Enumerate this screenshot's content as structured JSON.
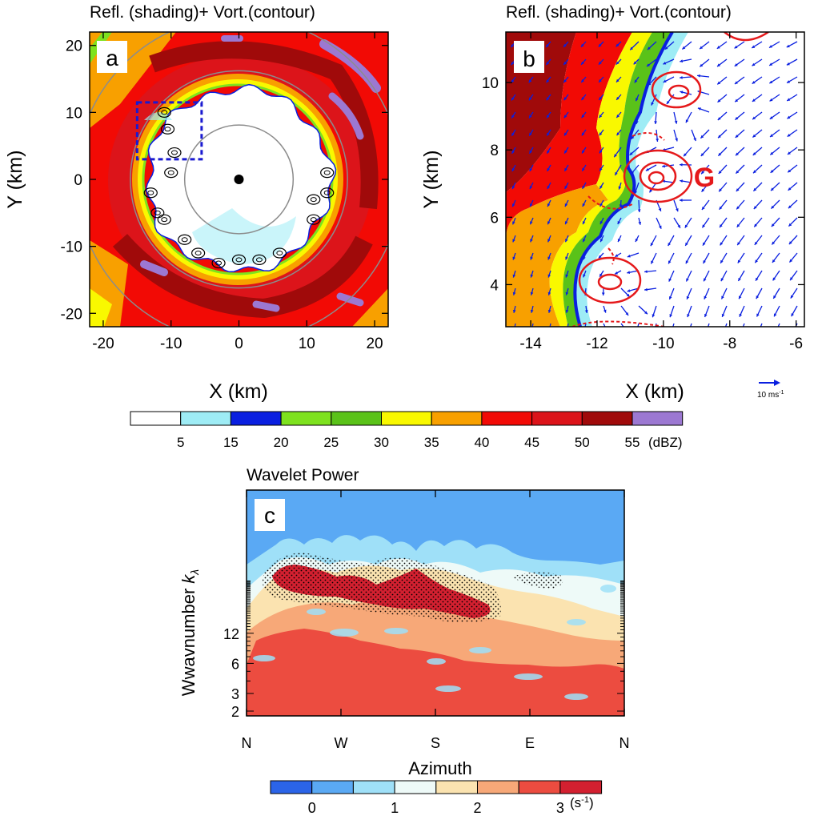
{
  "chart_data": [
    {
      "panel": "a",
      "type": "heatmap",
      "title": "Refl. (shading)+ Vort.(contour)",
      "xlabel": "X (km)",
      "ylabel": "Y (km)",
      "xlim": [
        -22,
        22
      ],
      "ylim": [
        -22,
        22
      ],
      "xticks": [
        -20,
        -10,
        0,
        10,
        20
      ],
      "yticks": [
        -20,
        -10,
        0,
        10,
        20
      ],
      "range_rings_km": [
        8,
        16,
        24
      ],
      "center": [
        0,
        0
      ],
      "inset_box": {
        "x": [
          -15,
          -5.5
        ],
        "y": [
          3,
          11.5
        ]
      },
      "eyewall_radius_km": 13.5,
      "vortex_points": [
        [
          -11,
          10
        ],
        [
          -10.5,
          7.5
        ],
        [
          -9.5,
          4
        ],
        [
          -10,
          1
        ],
        [
          -13,
          -2
        ],
        [
          -11,
          -6
        ],
        [
          -8,
          -9
        ],
        [
          -6,
          -11
        ],
        [
          -3,
          -12.5
        ],
        [
          0,
          -12
        ],
        [
          3,
          -12
        ],
        [
          6,
          -11
        ],
        [
          11,
          -6
        ],
        [
          13,
          -2
        ],
        [
          13,
          1
        ],
        [
          11,
          -3
        ],
        [
          -12,
          -5
        ]
      ]
    },
    {
      "panel": "b",
      "type": "heatmap",
      "title": "Refl. (shading)+ Vort.(contour)",
      "xlabel": "X (km)",
      "ylabel": "Y (km)",
      "xlim": [
        -14.75,
        -5.75
      ],
      "ylim": [
        2.75,
        11.5
      ],
      "xticks": [
        -14,
        -12,
        -10,
        -8,
        -6
      ],
      "yticks": [
        4,
        6,
        8,
        10
      ],
      "annotation": "G",
      "vector_ref": "10 ms",
      "vector_ref_sup": "-1"
    },
    {
      "type": "colorbar",
      "levels": [
        "5",
        "15",
        "20",
        "25",
        "30",
        "35",
        "40",
        "45",
        "50",
        "55"
      ],
      "units": "(dBZ)",
      "colors": [
        "#ffffff",
        "#9eecf5",
        "#0a1fe0",
        "#7ee21e",
        "#5ac219",
        "#f9f800",
        "#f8a000",
        "#f20a05",
        "#dc141a",
        "#a00a0a",
        "#9c78d2"
      ]
    },
    {
      "panel": "c",
      "type": "heatmap",
      "title": "Wavelet Power",
      "xlabel": "Azimuth",
      "ylabel": "Wwavnumber",
      "ylabel_math": "k",
      "ylabel_sub": "λ",
      "x_ticklabels": [
        "N",
        "W",
        "S",
        "E",
        "N"
      ],
      "y_ticks": [
        2,
        3,
        6,
        12
      ],
      "colorbar_ticks": [
        "0",
        "1",
        "2",
        "3"
      ],
      "colorbar_units": "(s",
      "colorbar_units_sup": "-1",
      "colorbar_units_close": ")",
      "colorbar_colors": [
        "#2b64e8",
        "#5aa9f4",
        "#9fe0f8",
        "#eefaf8",
        "#fbe3b0",
        "#f7a878",
        "#ec4c40",
        "#d32030"
      ]
    }
  ],
  "labels": {
    "a": "a",
    "b": "b",
    "c": "c"
  }
}
